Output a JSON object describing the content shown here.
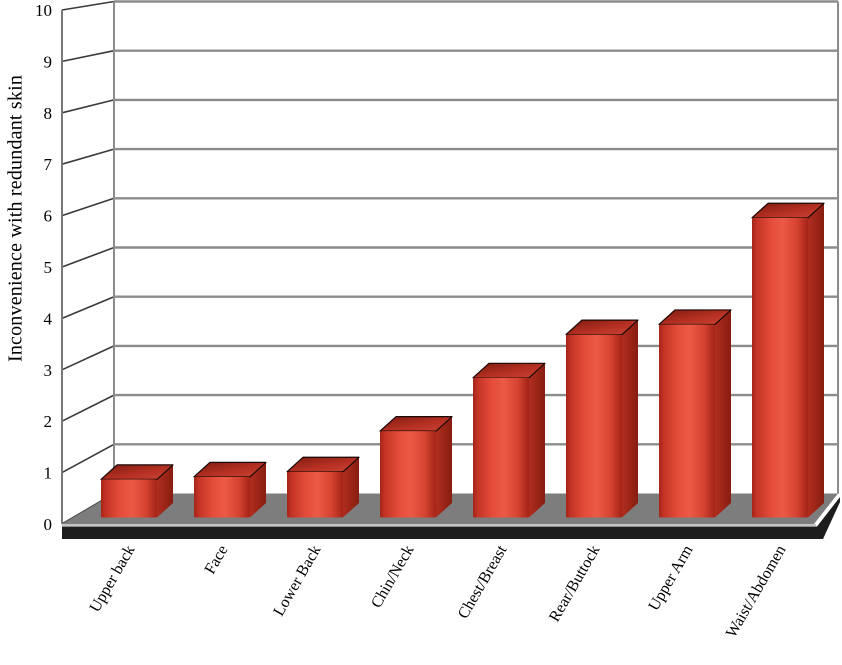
{
  "chart_data": {
    "type": "bar",
    "style": "3d-column",
    "title": "",
    "xlabel": "",
    "ylabel": "Inconvenience with redundant skin",
    "categories": [
      "Upper back",
      "Face",
      "Lower Back",
      "Chin/Neck",
      "Chest/Breast",
      "Rear/Buttock",
      "Upper Arm",
      "Waist/Abdomen"
    ],
    "values": [
      0.75,
      0.8,
      0.9,
      1.7,
      2.75,
      3.6,
      3.8,
      5.9
    ],
    "ylim": [
      0,
      10
    ],
    "yticks": [
      0,
      1,
      2,
      3,
      4,
      5,
      6,
      7,
      8,
      9,
      10
    ],
    "grid": true,
    "legend": false,
    "colors": {
      "bar_front_light": "#ec5a45",
      "bar_front": "#e24b38",
      "bar_front_dark": "#a32417",
      "bar_side_light": "#b02d1f",
      "bar_side_dark": "#871d10",
      "bar_top_dark": "#7c1b0f",
      "bar_top": "#b53023",
      "bar_top_light": "#ca4534",
      "bar_outline": "#1a0906",
      "floor": "#7d7d7d",
      "floor_edge_light": "#c4c4c4",
      "floor_edge_dark": "#1d1d1d",
      "wall": "#ffffff",
      "gridline": "#8c8c8c",
      "axis_line": "#787878",
      "hatch": "#3a3a3a",
      "text": "#000000"
    }
  }
}
